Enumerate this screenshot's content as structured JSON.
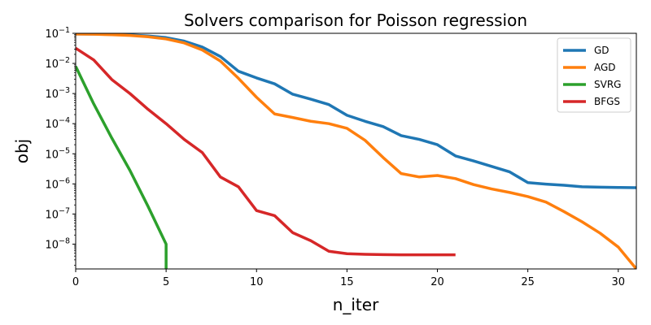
{
  "chart_data": {
    "type": "line",
    "title": "Solvers comparison for Poisson regression",
    "xlabel": "n_iter",
    "ylabel": "obj",
    "xlim": [
      0,
      31
    ],
    "ylim": [
      1.5e-09,
      0.1
    ],
    "yscale": "log",
    "grid": false,
    "legend_position": "top-right",
    "x_ticks": [
      0,
      5,
      10,
      15,
      20,
      25,
      30
    ],
    "x_tick_labels": [
      "0",
      "5",
      "10",
      "15",
      "20",
      "25",
      "30"
    ],
    "y_ticks": [
      1e-08,
      1e-07,
      1e-06,
      1e-05,
      0.0001,
      0.001,
      0.01,
      0.1
    ],
    "y_tick_labels": [
      {
        "base": "10",
        "exp": "−8"
      },
      {
        "base": "10",
        "exp": "−7"
      },
      {
        "base": "10",
        "exp": "−6"
      },
      {
        "base": "10",
        "exp": "−5"
      },
      {
        "base": "10",
        "exp": "−4"
      },
      {
        "base": "10",
        "exp": "−3"
      },
      {
        "base": "10",
        "exp": "−2"
      },
      {
        "base": "10",
        "exp": "−1"
      }
    ],
    "series": [
      {
        "name": "GD",
        "color": "#1f77b4",
        "x": [
          0,
          1,
          2,
          3,
          4,
          5,
          6,
          7,
          8,
          9,
          10,
          11,
          12,
          13,
          14,
          15,
          16,
          17,
          18,
          19,
          20,
          21,
          22,
          23,
          24,
          25,
          26,
          27,
          28,
          29,
          30,
          31
        ],
        "y": [
          0.095,
          0.094,
          0.092,
          0.088,
          0.082,
          0.072,
          0.055,
          0.035,
          0.017,
          0.0055,
          0.0033,
          0.0021,
          0.00095,
          0.00065,
          0.00043,
          0.00019,
          0.00012,
          8e-05,
          4e-05,
          3e-05,
          2e-05,
          8.5e-06,
          5.8e-06,
          3.8e-06,
          2.5e-06,
          1.1e-06,
          9.8e-07,
          9e-07,
          8e-07,
          7.8e-07,
          7.6e-07,
          7.5e-07
        ]
      },
      {
        "name": "AGD",
        "color": "#ff7f0e",
        "x": [
          0,
          1,
          2,
          3,
          4,
          5,
          6,
          7,
          8,
          9,
          10,
          11,
          12,
          13,
          14,
          15,
          16,
          17,
          18,
          19,
          20,
          21,
          22,
          23,
          24,
          25,
          26,
          27,
          28,
          29,
          30,
          31
        ],
        "y": [
          0.095,
          0.093,
          0.09,
          0.085,
          0.077,
          0.065,
          0.048,
          0.028,
          0.012,
          0.0032,
          0.00075,
          0.00021,
          0.00016,
          0.00012,
          0.0001,
          7e-05,
          2.8e-05,
          7.5e-06,
          2.2e-06,
          1.7e-06,
          1.9e-06,
          1.5e-06,
          9.5e-07,
          6.8e-07,
          5.2e-07,
          3.8e-07,
          2.5e-07,
          1.2e-07,
          5.5e-08,
          2.3e-08,
          8e-09,
          1.5e-09
        ]
      },
      {
        "name": "SVRG",
        "color": "#2ca02c",
        "x": [
          0,
          1,
          2,
          3,
          4,
          5,
          5
        ],
        "y": [
          0.008,
          0.00045,
          3.3e-05,
          2.8e-06,
          1.8e-07,
          1e-08,
          1.5e-09
        ]
      },
      {
        "name": "BFGS",
        "color": "#d62728",
        "x": [
          0,
          1,
          2,
          3,
          4,
          5,
          6,
          7,
          8,
          9,
          10,
          11,
          12,
          13,
          14,
          15,
          16,
          17,
          18,
          19,
          20,
          21
        ],
        "y": [
          0.032,
          0.013,
          0.0029,
          0.001,
          0.0003,
          0.0001,
          3e-05,
          1.1e-05,
          1.7e-06,
          8e-07,
          1.3e-07,
          8.8e-08,
          2.4e-08,
          1.3e-08,
          5.8e-09,
          4.8e-09,
          4.6e-09,
          4.5e-09,
          4.4e-09,
          4.4e-09,
          4.4e-09,
          4.4e-09
        ]
      }
    ]
  }
}
